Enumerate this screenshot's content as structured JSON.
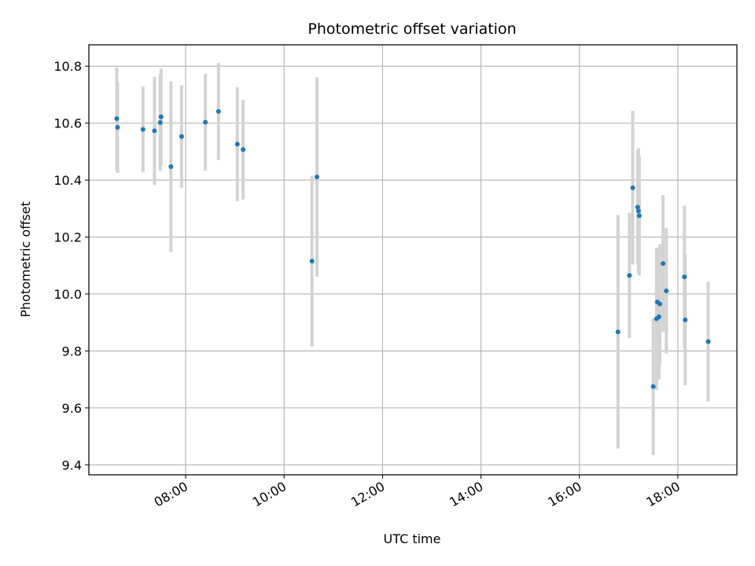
{
  "chart_data": {
    "type": "scatter",
    "title": "Photometric offset variation",
    "xlabel": "UTC time",
    "ylabel": "Photometric offset",
    "x_unit": "hours UTC",
    "xlim": [
      "06:02",
      "19:12"
    ],
    "ylim": [
      9.365,
      10.875
    ],
    "grid": true,
    "x_ticks": [
      "08:00",
      "10:00",
      "12:00",
      "14:00",
      "16:00",
      "18:00"
    ],
    "y_ticks": [
      "9.4",
      "9.6",
      "9.8",
      "10.0",
      "10.2",
      "10.4",
      "10.6",
      "10.8"
    ],
    "colors": {
      "point": "#1f77b4",
      "errorbar": "#d3d3d3",
      "grid": "#b0b0b0",
      "axes": "#000000"
    },
    "points": [
      {
        "x": "06:36",
        "y": 10.616,
        "err": 0.18
      },
      {
        "x": "06:37",
        "y": 10.585,
        "err": 0.16
      },
      {
        "x": "07:08",
        "y": 10.578,
        "err": 0.15
      },
      {
        "x": "07:22",
        "y": 10.573,
        "err": 0.19
      },
      {
        "x": "07:29",
        "y": 10.602,
        "err": 0.17
      },
      {
        "x": "07:30",
        "y": 10.622,
        "err": 0.17
      },
      {
        "x": "07:42",
        "y": 10.447,
        "err": 0.3
      },
      {
        "x": "07:55",
        "y": 10.553,
        "err": 0.18
      },
      {
        "x": "08:24",
        "y": 10.603,
        "err": 0.17
      },
      {
        "x": "08:40",
        "y": 10.641,
        "err": 0.17
      },
      {
        "x": "09:03",
        "y": 10.526,
        "err": 0.2
      },
      {
        "x": "09:10",
        "y": 10.507,
        "err": 0.175
      },
      {
        "x": "10:34",
        "y": 10.115,
        "err": 0.3
      },
      {
        "x": "10:40",
        "y": 10.411,
        "err": 0.35
      },
      {
        "x": "16:47",
        "y": 9.867,
        "err": 0.41
      },
      {
        "x": "17:01",
        "y": 10.065,
        "err": 0.22
      },
      {
        "x": "17:05",
        "y": 10.373,
        "err": 0.27
      },
      {
        "x": "17:11",
        "y": 10.305,
        "err": 0.2
      },
      {
        "x": "17:12",
        "y": 10.292,
        "err": 0.22
      },
      {
        "x": "17:13",
        "y": 10.275,
        "err": 0.21
      },
      {
        "x": "17:30",
        "y": 9.675,
        "err": 0.24
      },
      {
        "x": "17:34",
        "y": 9.913,
        "err": 0.25
      },
      {
        "x": "17:35",
        "y": 9.972,
        "err": 0.19
      },
      {
        "x": "17:37",
        "y": 9.92,
        "err": 0.22
      },
      {
        "x": "17:38",
        "y": 9.965,
        "err": 0.21
      },
      {
        "x": "17:42",
        "y": 10.107,
        "err": 0.24
      },
      {
        "x": "17:46",
        "y": 10.011,
        "err": 0.22
      },
      {
        "x": "18:08",
        "y": 10.06,
        "err": 0.25
      },
      {
        "x": "18:09",
        "y": 9.909,
        "err": 0.23
      },
      {
        "x": "18:37",
        "y": 9.833,
        "err": 0.21
      }
    ]
  }
}
